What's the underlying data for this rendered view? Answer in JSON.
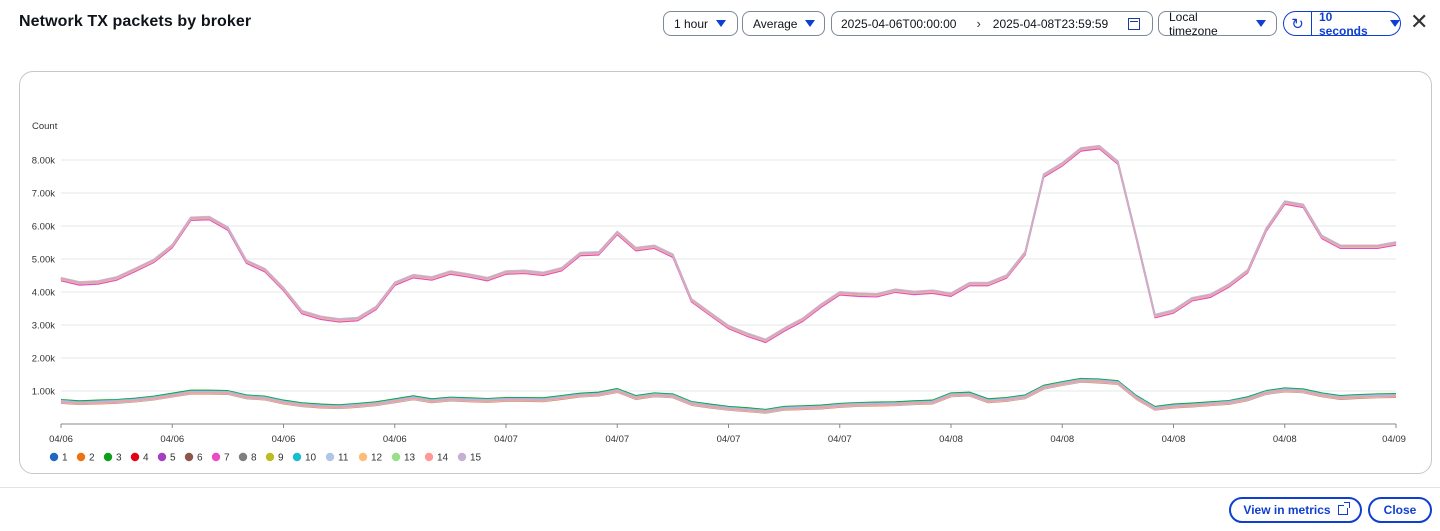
{
  "modal": {
    "title": "Network TX packets by broker",
    "period": "1 hour",
    "statistic": "Average",
    "range_start": "2025-04-06T00:00:00",
    "range_sep": "›",
    "range_end": "2025-04-08T23:59:59",
    "timezone": "Local timezone",
    "refresh_interval": "10 seconds",
    "close_symbol": "✕",
    "refresh_symbol": "↻"
  },
  "footer": {
    "view_in_metrics": "View in metrics",
    "close": "Close"
  },
  "colors": {
    "accent": "#0f3fd0",
    "grid": "#e6e8ea",
    "axis": "#888888"
  },
  "chart_data": {
    "type": "line",
    "ylabel": "Count",
    "ylim": [
      0,
      9000
    ],
    "yticks": [
      1000,
      2000,
      3000,
      4000,
      5000,
      6000,
      7000,
      8000
    ],
    "ytick_labels": [
      "1.00k",
      "2.00k",
      "3.00k",
      "4.00k",
      "5.00k",
      "6.00k",
      "7.00k",
      "8.00k"
    ],
    "xlim": [
      0,
      72
    ],
    "xticks": [
      0,
      6,
      12,
      18,
      24,
      30,
      36,
      42,
      48,
      54,
      60,
      66,
      72
    ],
    "xtick_labels": [
      "04/06",
      "04/06",
      "04/06",
      "04/06",
      "04/07",
      "04/07",
      "04/07",
      "04/07",
      "04/08",
      "04/08",
      "04/08",
      "04/08",
      "04/09"
    ],
    "grid": true,
    "legend_position": "bottom-left",
    "legend": [
      {
        "name": "1",
        "color": "#1f69c1"
      },
      {
        "name": "2",
        "color": "#ed7211"
      },
      {
        "name": "3",
        "color": "#0d9e1b"
      },
      {
        "name": "4",
        "color": "#e00414"
      },
      {
        "name": "5",
        "color": "#a53ec2"
      },
      {
        "name": "6",
        "color": "#8c564b"
      },
      {
        "name": "7",
        "color": "#e84bc3"
      },
      {
        "name": "8",
        "color": "#7f7f7f"
      },
      {
        "name": "9",
        "color": "#bcbd22"
      },
      {
        "name": "10",
        "color": "#17becf"
      },
      {
        "name": "11",
        "color": "#aec7e8"
      },
      {
        "name": "12",
        "color": "#ffbb78"
      },
      {
        "name": "13",
        "color": "#98df8a"
      },
      {
        "name": "14",
        "color": "#ff9896"
      },
      {
        "name": "15",
        "color": "#c5b0d5"
      }
    ],
    "upper_band": {
      "x": [
        0,
        1,
        2,
        3,
        4,
        5,
        6,
        7,
        8,
        9,
        10,
        11,
        12,
        13,
        14,
        15,
        16,
        17,
        18,
        19,
        20,
        21,
        22,
        23,
        24,
        25,
        26,
        27,
        28,
        29,
        30,
        31,
        32,
        33,
        34,
        35,
        36,
        37,
        38,
        39,
        40,
        41,
        42,
        43,
        44,
        45,
        46,
        47,
        48,
        49,
        50,
        51,
        52,
        53,
        54,
        55,
        56,
        57,
        58,
        59,
        60,
        61,
        62,
        63,
        64,
        65,
        66,
        67,
        68,
        69,
        70,
        71,
        72
      ],
      "values": [
        4400,
        4270,
        4300,
        4420,
        4680,
        4950,
        5400,
        6230,
        6250,
        5930,
        4930,
        4670,
        4100,
        3400,
        3230,
        3150,
        3190,
        3530,
        4260,
        4490,
        4420,
        4600,
        4510,
        4400,
        4600,
        4620,
        4560,
        4700,
        5160,
        5180,
        5800,
        5310,
        5380,
        5110,
        3760,
        3350,
        2950,
        2720,
        2530,
        2870,
        3170,
        3600,
        3970,
        3930,
        3910,
        4050,
        3980,
        4020,
        3930,
        4250,
        4250,
        4480,
        5190,
        7540,
        7880,
        8330,
        8400,
        7930,
        5650,
        3280,
        3420,
        3790,
        3900,
        4210,
        4640,
        5900,
        6720,
        6620,
        5680,
        5380,
        5380,
        5380,
        5480
      ],
      "series_offsets": [
        0,
        -20,
        10,
        30,
        -15,
        5,
        -60,
        25,
        -10,
        15,
        40,
        -25,
        0,
        20,
        -5
      ]
    },
    "lower_band": {
      "x": [
        0,
        1,
        2,
        3,
        4,
        5,
        6,
        7,
        8,
        9,
        10,
        11,
        12,
        13,
        14,
        15,
        16,
        17,
        18,
        19,
        20,
        21,
        22,
        23,
        24,
        25,
        26,
        27,
        28,
        29,
        30,
        31,
        32,
        33,
        34,
        35,
        36,
        37,
        38,
        39,
        40,
        41,
        42,
        43,
        44,
        45,
        46,
        47,
        48,
        49,
        50,
        51,
        52,
        53,
        54,
        55,
        56,
        57,
        58,
        59,
        60,
        61,
        62,
        63,
        64,
        65,
        66,
        67,
        68,
        69,
        70,
        71,
        72
      ],
      "values": [
        680,
        640,
        660,
        680,
        720,
        780,
        870,
        960,
        960,
        950,
        820,
        780,
        660,
        580,
        540,
        520,
        560,
        610,
        700,
        790,
        700,
        750,
        730,
        710,
        740,
        740,
        730,
        800,
        870,
        900,
        1010,
        800,
        880,
        850,
        620,
        540,
        470,
        430,
        380,
        470,
        490,
        510,
        560,
        590,
        600,
        610,
        640,
        660,
        880,
        900,
        700,
        740,
        820,
        1110,
        1220,
        1320,
        1300,
        1250,
        800,
        470,
        540,
        570,
        610,
        650,
        760,
        950,
        1030,
        1000,
        880,
        800,
        830,
        850,
        860
      ],
      "series_offsets": [
        -30,
        -50,
        60,
        20,
        0,
        -10,
        30,
        -20,
        10,
        40,
        -40,
        0,
        15,
        -15,
        25
      ]
    }
  }
}
